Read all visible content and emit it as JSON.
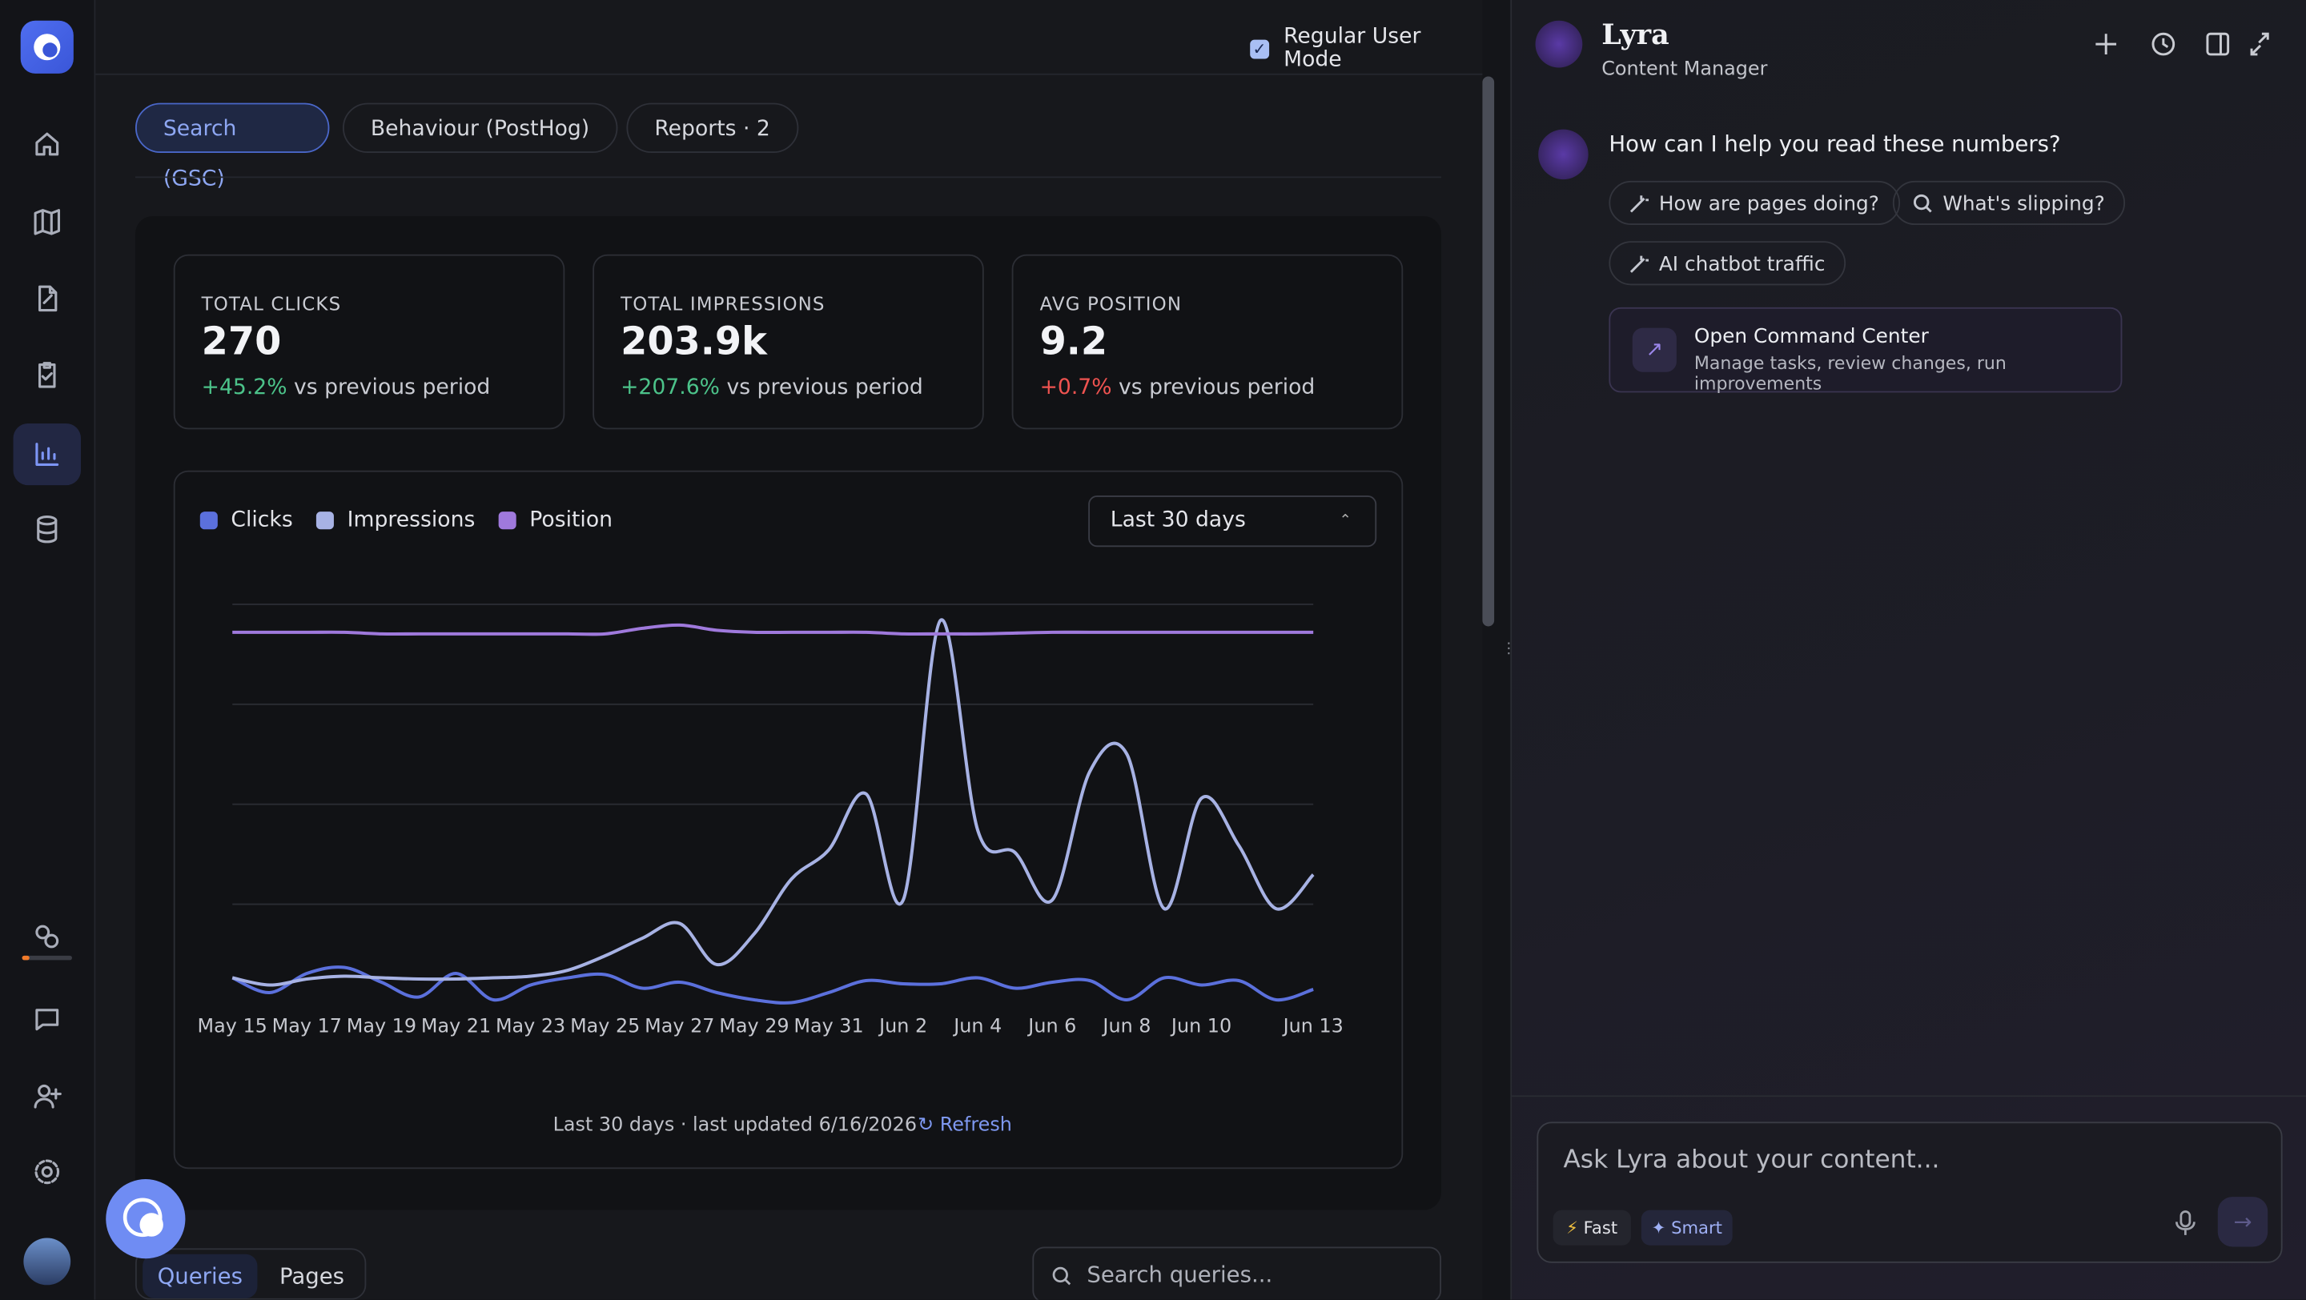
{
  "top_bar": {
    "mode_label": "Regular User Mode"
  },
  "tabs": [
    "Search (GSC)",
    "Behaviour (PostHog)",
    "Reports · 2"
  ],
  "kpis": [
    {
      "label": "TOTAL CLICKS",
      "value": "270",
      "change": "+45.2%",
      "note": "vs previous period"
    },
    {
      "label": "TOTAL IMPRESSIONS",
      "value": "203.9k",
      "change": "+207.6%",
      "note": "vs previous period"
    },
    {
      "label": "AVG POSITION",
      "value": "9.2",
      "change": "+0.7%",
      "note": "vs previous period"
    }
  ],
  "chart_panel": {
    "range_select": "Last 30 days",
    "footer": "Last 30 days · last updated 6/16/2026",
    "refresh": "Refresh"
  },
  "chart_data": {
    "type": "line",
    "grid": true,
    "ylim": [
      0,
      100
    ],
    "categories": [
      "May 15",
      null,
      "May 17",
      null,
      "May 19",
      null,
      "May 21",
      null,
      "May 23",
      null,
      "May 25",
      null,
      "May 27",
      null,
      "May 29",
      null,
      "May 31",
      null,
      "Jun 2",
      null,
      "Jun 4",
      null,
      "Jun 6",
      null,
      "Jun 8",
      null,
      "Jun 10",
      null,
      null,
      "Jun 13"
    ],
    "series": [
      {
        "name": "Clicks",
        "color": "#5b70dc",
        "values": [
          6.6,
          2.9,
          7.7,
          9.2,
          5.5,
          1.8,
          7.7,
          1.1,
          4.8,
          6.6,
          7.4,
          4,
          5.5,
          2.9,
          1.1,
          0.4,
          2.9,
          5.9,
          5.1,
          5.1,
          6.6,
          4,
          5.5,
          5.9,
          1.1,
          6.6,
          4.8,
          5.9,
          1.1,
          3.7
        ]
      },
      {
        "name": "Impressions",
        "color": "#a7b2e4",
        "values": [
          6.6,
          4.8,
          6.3,
          7,
          6.6,
          6.3,
          6.3,
          6.6,
          7,
          8.5,
          12.1,
          16.5,
          20.2,
          9.9,
          17.6,
          31.3,
          38.6,
          52.6,
          26.1,
          96,
          43.4,
          37.9,
          26.1,
          58.1,
          62.5,
          23.9,
          51.5,
          39.7,
          23.9,
          32.4
        ]
      },
      {
        "name": "Position",
        "color": "#9f79dc",
        "values": [
          93,
          93,
          93,
          93,
          92.6,
          92.6,
          92.6,
          92.6,
          92.6,
          92.6,
          92.6,
          94,
          94.8,
          93.5,
          93,
          93,
          93,
          93,
          92.6,
          92.6,
          92.6,
          92.8,
          93,
          93,
          93,
          93,
          93,
          93,
          93,
          93
        ]
      }
    ]
  },
  "sub_tabs": [
    "Queries",
    "Pages"
  ],
  "search_placeholder": "Search queries...",
  "assistant": {
    "name": "Lyra",
    "role": "Content Manager",
    "greeting": "How can I help you read these numbers?",
    "suggestions": [
      "How are pages doing?",
      "What's slipping?",
      "AI chatbot traffic"
    ],
    "command": {
      "title": "Open Command Center",
      "subtitle": "Manage tasks, review changes, run improvements"
    },
    "input_placeholder": "Ask Lyra about your content...",
    "modes": [
      "Fast",
      "Smart"
    ]
  }
}
